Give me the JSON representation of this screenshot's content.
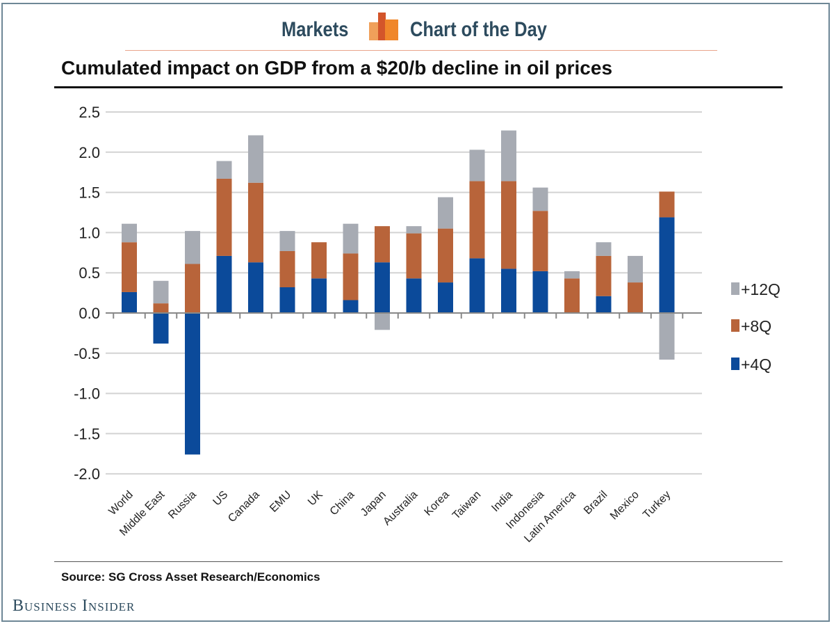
{
  "header": {
    "left": "Markets",
    "right": "Chart of the Day"
  },
  "footer": {
    "source": "Source: SG Cross Asset Research/Economics",
    "publisher": "Business Insider"
  },
  "colors": {
    "+4Q": "#0b4a9a",
    "+8Q": "#b8643a",
    "+12Q": "#a7abb3",
    "logo_orange": "#f0913a",
    "logo_dark": "#d3552a",
    "brand_text": "#2d4b5e"
  },
  "chart_data": {
    "type": "bar",
    "stacked": true,
    "title": "Cumulated impact on GDP from a $20/b decline in oil prices",
    "xlabel": "",
    "ylabel": "",
    "ylim": [
      -2.0,
      2.5
    ],
    "yticks": [
      "2.5",
      "2.0",
      "1.5",
      "1.0",
      "0.5",
      "0.0",
      "-0.5",
      "-1.0",
      "-1.5",
      "-2.0"
    ],
    "grid": true,
    "legend": "right",
    "categories": [
      "World",
      "Middle East",
      "Russia",
      "US",
      "Canada",
      "EMU",
      "UK",
      "China",
      "Japan",
      "Australia",
      "Korea",
      "Taiwan",
      "India",
      "Indonesia",
      "Latin America",
      "Brazil",
      "Mexico",
      "Turkey"
    ],
    "series": [
      {
        "name": "+4Q",
        "values": [
          0.26,
          -0.38,
          -1.76,
          0.71,
          0.63,
          0.32,
          0.43,
          0.16,
          0.63,
          0.43,
          0.38,
          0.68,
          0.55,
          0.52,
          0,
          0.21,
          0,
          1.19
        ]
      },
      {
        "name": "+8Q",
        "values": [
          0.62,
          0.12,
          0.61,
          0.96,
          0.99,
          0.45,
          0.45,
          0.58,
          0.45,
          0.56,
          0.67,
          0.96,
          1.09,
          0.75,
          0.43,
          0.5,
          0.38,
          0.32
        ]
      },
      {
        "name": "+12Q",
        "values": [
          0.23,
          0.28,
          0.41,
          0.22,
          0.59,
          0.25,
          0,
          0.37,
          -0.21,
          0.09,
          0.39,
          0.39,
          0.63,
          0.29,
          0.09,
          0.17,
          0.33,
          -0.58
        ]
      }
    ]
  }
}
